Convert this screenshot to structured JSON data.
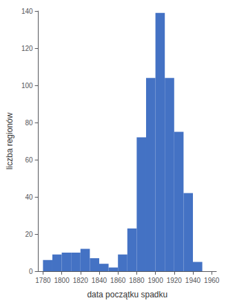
{
  "chart_data": {
    "type": "histogram",
    "xlabel": "data początku spadku",
    "ylabel": "liczba regionów",
    "bins": [
      1780,
      1790,
      1800,
      1810,
      1820,
      1830,
      1840,
      1850,
      1860,
      1870,
      1880,
      1890,
      1900,
      1910,
      1920,
      1930,
      1940,
      1950,
      1960
    ],
    "values": [
      6,
      9,
      10,
      10,
      12,
      7,
      4,
      2,
      9,
      23,
      72,
      104,
      139,
      104,
      75,
      42,
      5,
      0
    ],
    "color": "#4472C4",
    "xlim": [
      1775,
      1965
    ],
    "xticks": [
      1780,
      1800,
      1820,
      1840,
      1860,
      1880,
      1900,
      1920,
      1940,
      1960
    ],
    "ylim": [
      0,
      140
    ],
    "yticks": [
      0,
      20,
      40,
      60,
      80,
      100,
      120,
      140
    ],
    "grid": false
  }
}
